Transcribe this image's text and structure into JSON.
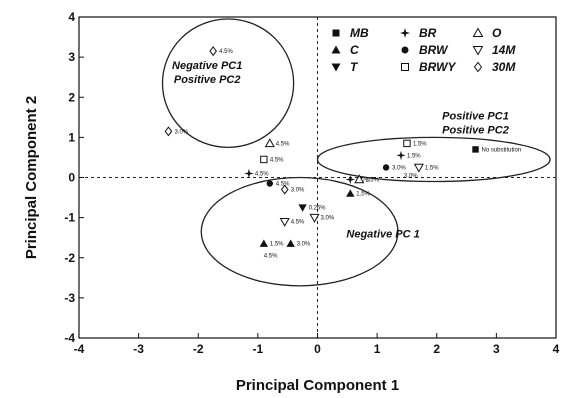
{
  "chart_data": {
    "type": "scatter",
    "xlabel": "Principal Component 1",
    "ylabel": "Principal Component 2",
    "xlim": [
      -4,
      4
    ],
    "ylim": [
      -4,
      4
    ],
    "xticks": [
      -4,
      -3,
      -2,
      -1,
      0,
      1,
      2,
      3,
      4
    ],
    "yticks": [
      4,
      3,
      2,
      1,
      0,
      -1,
      -2,
      -3,
      -4
    ],
    "grid": false,
    "reference_lines": "dashed lines at x = 0 and y = 0",
    "legend_position": "top-right",
    "legend": [
      {
        "label": "MB",
        "marker": "square-filled"
      },
      {
        "label": "C",
        "marker": "triangle-up-filled"
      },
      {
        "label": "T",
        "marker": "triangle-down-filled"
      },
      {
        "label": "BR",
        "marker": "star-filled"
      },
      {
        "label": "BRW",
        "marker": "circle-filled"
      },
      {
        "label": "BRWY",
        "marker": "square-open"
      },
      {
        "label": "O",
        "marker": "triangle-up-open"
      },
      {
        "label": "14M",
        "marker": "triangle-down-open"
      },
      {
        "label": "30M",
        "marker": "diamond-open"
      }
    ],
    "annotations": [
      {
        "lines": [
          "Negative PC1",
          "Positive PC2"
        ]
      },
      {
        "lines": [
          "Positive PC1",
          "Positive PC2"
        ]
      },
      {
        "lines": [
          "Negative PC 1"
        ]
      }
    ],
    "points": [
      {
        "x": 2.65,
        "y": 0.7,
        "marker": "square-filled",
        "label": "No substitution"
      },
      {
        "x": -1.75,
        "y": 3.15,
        "marker": "diamond-open",
        "label": "4.5%"
      },
      {
        "x": -2.5,
        "y": 1.15,
        "marker": "diamond-open",
        "label": "3.0%"
      },
      {
        "x": -0.8,
        "y": 0.85,
        "marker": "triangle-up-open",
        "label": "4.5%"
      },
      {
        "x": -0.9,
        "y": 0.45,
        "marker": "square-open",
        "label": "4.5%"
      },
      {
        "x": -1.15,
        "y": 0.1,
        "marker": "star-filled",
        "label": "4.5%"
      },
      {
        "x": -0.8,
        "y": -0.15,
        "marker": "circle-filled",
        "label": "4.5%"
      },
      {
        "x": -0.55,
        "y": -0.3,
        "marker": "diamond-open",
        "label": "3.0%"
      },
      {
        "x": -0.25,
        "y": -0.75,
        "marker": "triangle-down-filled",
        "label": "0.26%"
      },
      {
        "x": -0.05,
        "y": -1.0,
        "marker": "triangle-down-open",
        "label": "3.0%"
      },
      {
        "x": -0.55,
        "y": -1.1,
        "marker": "triangle-down-open",
        "label": "4.5%"
      },
      {
        "x": -0.9,
        "y": -1.65,
        "marker": "triangle-up-filled",
        "label": "1.5%"
      },
      {
        "x": -0.45,
        "y": -1.65,
        "marker": "triangle-up-filled",
        "label": "3.0%"
      },
      {
        "x": -0.8,
        "y": -1.95,
        "marker": "none",
        "label": "4.5%"
      },
      {
        "x": 0.55,
        "y": -0.05,
        "marker": "star-filled",
        "label": "3.0%"
      },
      {
        "x": 0.7,
        "y": -0.05,
        "marker": "triangle-up-open",
        "label": "1.5%"
      },
      {
        "x": 0.55,
        "y": -0.4,
        "marker": "triangle-up-filled",
        "label": "1.5%"
      },
      {
        "x": 1.15,
        "y": 0.25,
        "marker": "circle-filled",
        "label": "3.0%"
      },
      {
        "x": 1.4,
        "y": 0.55,
        "marker": "star-filled",
        "label": "1.5%"
      },
      {
        "x": 1.5,
        "y": 0.85,
        "marker": "square-open",
        "label": "1.5%"
      },
      {
        "x": 1.7,
        "y": 0.25,
        "marker": "triangle-down-open",
        "label": "1.5%"
      },
      {
        "x": 1.55,
        "y": 0.05,
        "marker": "none",
        "label": "3.0%"
      }
    ],
    "clusters": [
      {
        "cx": -1.5,
        "cy": 2.35,
        "rx": 1.1,
        "ry": 1.6
      },
      {
        "cx": 1.95,
        "cy": 0.45,
        "rx": 1.95,
        "ry": 0.55
      },
      {
        "cx": -0.3,
        "cy": -1.35,
        "rx": 1.65,
        "ry": 1.35
      }
    ]
  }
}
